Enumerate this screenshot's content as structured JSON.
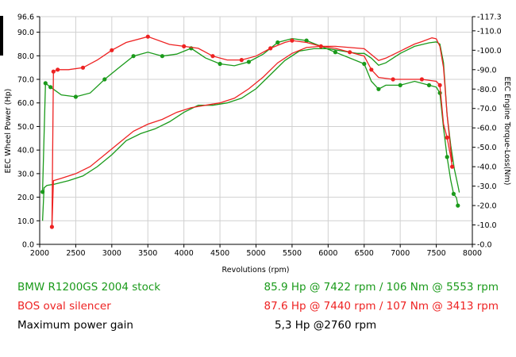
{
  "chart_data": {
    "type": "line",
    "xlabel": "Revolutions (rpm)",
    "ylabel_left": "EEC Wheel Power (Hp)",
    "ylabel_right": "EEC Engine Torque-Loss(Nm)",
    "xlim": [
      2000,
      8000
    ],
    "ylim_left": [
      0,
      96.6
    ],
    "ylim_right": [
      0,
      117.3
    ],
    "x_ticks": [
      "2000",
      "2500",
      "3000",
      "3500",
      "4000",
      "4500",
      "5000",
      "5500",
      "6000",
      "6500",
      "7000",
      "7500",
      "8000"
    ],
    "y_left_ticks": [
      {
        "value": 0,
        "label": "0.0"
      },
      {
        "value": 10,
        "label": "10.0"
      },
      {
        "value": 20,
        "label": "20.0"
      },
      {
        "value": 30,
        "label": "30.0"
      },
      {
        "value": 40,
        "label": "40.0"
      },
      {
        "value": 50,
        "label": "50.0"
      },
      {
        "value": 60,
        "label": "60.0"
      },
      {
        "value": 70,
        "label": "70.0"
      },
      {
        "value": 80,
        "label": "80.0"
      },
      {
        "value": 90,
        "label": "90.0"
      },
      {
        "value": 96.6,
        "label": "96.6"
      }
    ],
    "y_right_ticks": [
      {
        "value": 0,
        "label": "0.0"
      },
      {
        "value": 10,
        "label": "10.0"
      },
      {
        "value": 20,
        "label": "20.0"
      },
      {
        "value": 30,
        "label": "30.0"
      },
      {
        "value": 40,
        "label": "40.0"
      },
      {
        "value": 50,
        "label": "50.0"
      },
      {
        "value": 60,
        "label": "60.0"
      },
      {
        "value": 70,
        "label": "70.0"
      },
      {
        "value": 80,
        "label": "80.0"
      },
      {
        "value": 90,
        "label": "90.0"
      },
      {
        "value": 100,
        "label": "100.0"
      },
      {
        "value": 110,
        "label": "110.0"
      },
      {
        "value": 117.3,
        "label": "117.3"
      }
    ],
    "grid": true,
    "series": [
      {
        "name": "BMW R1200GS 2004 stock",
        "color": "#1a9a1a",
        "torque_axis": "right",
        "torque": [
          [
            2040,
            27
          ],
          [
            2080,
            83
          ],
          [
            2150,
            81
          ],
          [
            2300,
            77
          ],
          [
            2500,
            76
          ],
          [
            2700,
            78
          ],
          [
            2900,
            85
          ],
          [
            3100,
            91
          ],
          [
            3300,
            97
          ],
          [
            3500,
            99
          ],
          [
            3700,
            97
          ],
          [
            3900,
            98
          ],
          [
            4100,
            101
          ],
          [
            4300,
            96
          ],
          [
            4500,
            93
          ],
          [
            4700,
            92
          ],
          [
            4900,
            94
          ],
          [
            5100,
            98
          ],
          [
            5300,
            104
          ],
          [
            5500,
            106
          ],
          [
            5700,
            105
          ],
          [
            5900,
            102
          ],
          [
            6100,
            99
          ],
          [
            6300,
            96
          ],
          [
            6500,
            93
          ],
          [
            6600,
            84
          ],
          [
            6700,
            80
          ],
          [
            6800,
            82
          ],
          [
            7000,
            82
          ],
          [
            7200,
            84
          ],
          [
            7400,
            82
          ],
          [
            7500,
            81
          ],
          [
            7550,
            78
          ],
          [
            7600,
            60
          ],
          [
            7650,
            45
          ],
          [
            7700,
            33
          ],
          [
            7740,
            26
          ],
          [
            7780,
            24
          ],
          [
            7800,
            20
          ]
        ],
        "power_axis": "left",
        "power": [
          [
            2040,
            10
          ],
          [
            2060,
            24
          ],
          [
            2100,
            25
          ],
          [
            2200,
            25.5
          ],
          [
            2400,
            27
          ],
          [
            2600,
            29
          ],
          [
            2800,
            33
          ],
          [
            3000,
            38
          ],
          [
            3200,
            44
          ],
          [
            3400,
            47
          ],
          [
            3600,
            49
          ],
          [
            3800,
            52
          ],
          [
            4000,
            56
          ],
          [
            4200,
            59
          ],
          [
            4400,
            59
          ],
          [
            4600,
            60
          ],
          [
            4800,
            62
          ],
          [
            5000,
            66
          ],
          [
            5200,
            72
          ],
          [
            5400,
            78
          ],
          [
            5600,
            82
          ],
          [
            5800,
            83
          ],
          [
            6000,
            83
          ],
          [
            6200,
            82
          ],
          [
            6400,
            81
          ],
          [
            6500,
            81
          ],
          [
            6600,
            79
          ],
          [
            6700,
            76
          ],
          [
            6800,
            77
          ],
          [
            7000,
            81
          ],
          [
            7200,
            84
          ],
          [
            7400,
            85.5
          ],
          [
            7500,
            85.9
          ],
          [
            7550,
            85
          ],
          [
            7600,
            77
          ],
          [
            7650,
            55
          ],
          [
            7700,
            42
          ],
          [
            7750,
            32
          ],
          [
            7800,
            25
          ],
          [
            7820,
            22
          ]
        ]
      },
      {
        "name": "BOS oval silencer",
        "color": "#ee2222",
        "torque_axis": "right",
        "torque": [
          [
            2170,
            9
          ],
          [
            2190,
            89
          ],
          [
            2250,
            90
          ],
          [
            2400,
            90
          ],
          [
            2600,
            91
          ],
          [
            2800,
            95
          ],
          [
            3000,
            100
          ],
          [
            3200,
            104
          ],
          [
            3500,
            107
          ],
          [
            3800,
            103
          ],
          [
            4000,
            102
          ],
          [
            4200,
            101
          ],
          [
            4400,
            97
          ],
          [
            4600,
            95
          ],
          [
            4800,
            95
          ],
          [
            5000,
            97
          ],
          [
            5200,
            101
          ],
          [
            5400,
            104
          ],
          [
            5500,
            105
          ],
          [
            5700,
            104
          ],
          [
            5900,
            102
          ],
          [
            6100,
            101
          ],
          [
            6300,
            99
          ],
          [
            6500,
            97
          ],
          [
            6600,
            90
          ],
          [
            6700,
            86
          ],
          [
            6900,
            85
          ],
          [
            7100,
            85
          ],
          [
            7300,
            85
          ],
          [
            7500,
            84
          ],
          [
            7550,
            82
          ],
          [
            7600,
            62
          ],
          [
            7650,
            55
          ],
          [
            7700,
            45
          ],
          [
            7720,
            40
          ]
        ],
        "power_axis": "left",
        "power": [
          [
            2170,
            7
          ],
          [
            2190,
            27
          ],
          [
            2300,
            28
          ],
          [
            2500,
            30
          ],
          [
            2700,
            33
          ],
          [
            2900,
            38
          ],
          [
            3100,
            43
          ],
          [
            3300,
            48
          ],
          [
            3500,
            51
          ],
          [
            3700,
            53
          ],
          [
            3900,
            56
          ],
          [
            4100,
            58
          ],
          [
            4300,
            59
          ],
          [
            4500,
            60
          ],
          [
            4700,
            62
          ],
          [
            4900,
            66
          ],
          [
            5100,
            71
          ],
          [
            5300,
            77
          ],
          [
            5500,
            81
          ],
          [
            5700,
            83.5
          ],
          [
            5900,
            84
          ],
          [
            6100,
            84
          ],
          [
            6300,
            83.5
          ],
          [
            6500,
            83
          ],
          [
            6600,
            80.5
          ],
          [
            6700,
            78
          ],
          [
            6800,
            79
          ],
          [
            7000,
            82
          ],
          [
            7200,
            85
          ],
          [
            7300,
            86
          ],
          [
            7440,
            87.6
          ],
          [
            7500,
            87.2
          ],
          [
            7550,
            84
          ],
          [
            7600,
            75
          ],
          [
            7650,
            55
          ],
          [
            7700,
            40
          ],
          [
            7720,
            35
          ]
        ]
      }
    ]
  },
  "legend": {
    "rows": [
      {
        "label": "BMW R1200GS 2004 stock",
        "value": "85.9 Hp @ 7422 rpm / 106 Nm @ 5553 rpm",
        "color": "#1a9a1a"
      },
      {
        "label": "BOS oval silencer",
        "value": "87.6 Hp @ 7440 rpm / 107 Nm @ 3413 rpm",
        "color": "#ee2222"
      }
    ],
    "gain_label": "Maximum power gain",
    "gain_value": "5,3 Hp @2760 rpm"
  }
}
